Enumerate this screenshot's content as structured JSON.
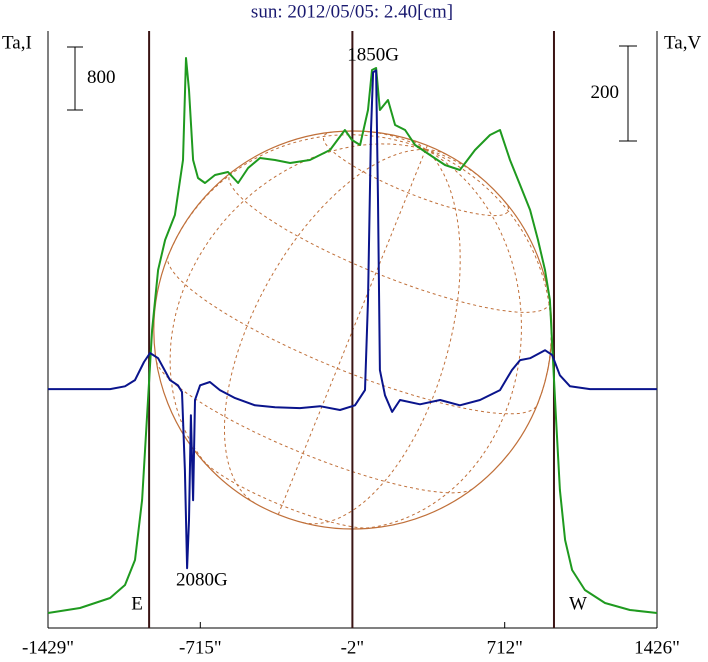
{
  "chart_data": {
    "type": "line",
    "title": "sun: 2012/05/05: 2.40[cm]",
    "y_label": "Ta,I",
    "y2_label": "Ta,V",
    "xlim": [
      -1429,
      1426
    ],
    "xticks": [
      {
        "value": -1429,
        "label": "-1429\""
      },
      {
        "value": -715,
        "label": "-715\""
      },
      {
        "value": -2,
        "label": "-2\""
      },
      {
        "value": 712,
        "label": "712\""
      },
      {
        "value": 1426,
        "label": "1426\""
      }
    ],
    "ylim": [
      -165,
      7417
    ],
    "y2lim": [
      -503,
      754
    ],
    "scale_bar": 800,
    "scale_bar2": 200,
    "disk_radius": 933,
    "disk_color": "#c0703a",
    "line_color": "#3a1414",
    "vlines": [
      {
        "x": -955,
        "label": "E"
      },
      {
        "x": -2
      },
      {
        "x": 943,
        "label": "W"
      }
    ],
    "annotations": [
      {
        "text": "1850G",
        "x": 95
      },
      {
        "text": "2080G",
        "x": -778
      }
    ],
    "series": [
      {
        "name": "Ta,I",
        "color": "#1f9a1f",
        "x": [
          -1429,
          -1279,
          -1138,
          -1068,
          -1021,
          -988,
          -960,
          -941,
          -913,
          -880,
          -834,
          -796,
          -782,
          -768,
          -749,
          -726,
          -693,
          -646,
          -585,
          -538,
          -491,
          -435,
          -365,
          -294,
          -201,
          -107,
          -37,
          -4,
          34,
          71,
          90,
          109,
          127,
          165,
          198,
          245,
          292,
          362,
          432,
          502,
          573,
          643,
          690,
          737,
          784,
          831,
          868,
          901,
          924,
          953,
          971,
          995,
          1028,
          1088,
          1182,
          1299,
          1426
        ],
        "values": [
          25,
          89,
          216,
          381,
          699,
          1461,
          2731,
          3620,
          4382,
          4763,
          5080,
          5779,
          7074,
          6668,
          5779,
          5550,
          5486,
          5588,
          5626,
          5486,
          5677,
          5804,
          5779,
          5740,
          5779,
          5906,
          6160,
          6033,
          5969,
          6414,
          6922,
          6947,
          6414,
          6541,
          6223,
          6160,
          5969,
          5842,
          5715,
          5652,
          5906,
          6096,
          6160,
          5779,
          5461,
          5144,
          4763,
          4382,
          4001,
          2477,
          1588,
          953,
          572,
          318,
          152,
          64,
          25
        ]
      },
      {
        "name": "Ta,V",
        "color": "#0a148c",
        "axis": "y2",
        "x": [
          -1429,
          -1138,
          -1068,
          -1021,
          -979,
          -951,
          -913,
          -857,
          -820,
          -801,
          -787,
          -777,
          -768,
          -759,
          -749,
          -740,
          -716,
          -670,
          -623,
          -552,
          -459,
          -365,
          -248,
          -154,
          -60,
          10,
          57,
          71,
          85,
          95,
          109,
          118,
          127,
          151,
          184,
          221,
          315,
          409,
          502,
          596,
          690,
          746,
          784,
          831,
          901,
          934,
          971,
          1018,
          1112,
          1426
        ],
        "values": [
          0,
          0,
          6,
          19,
          57,
          76,
          65,
          19,
          8,
          -6,
          -171,
          -377,
          -276,
          -55,
          -234,
          -23,
          8,
          15,
          -2,
          -19,
          -34,
          -38,
          -40,
          -36,
          -44,
          -34,
          -2,
          187,
          545,
          667,
          671,
          398,
          40,
          -13,
          -48,
          -23,
          -32,
          -23,
          -34,
          -23,
          -2,
          40,
          61,
          65,
          82,
          72,
          29,
          6,
          0,
          0
        ]
      }
    ]
  }
}
